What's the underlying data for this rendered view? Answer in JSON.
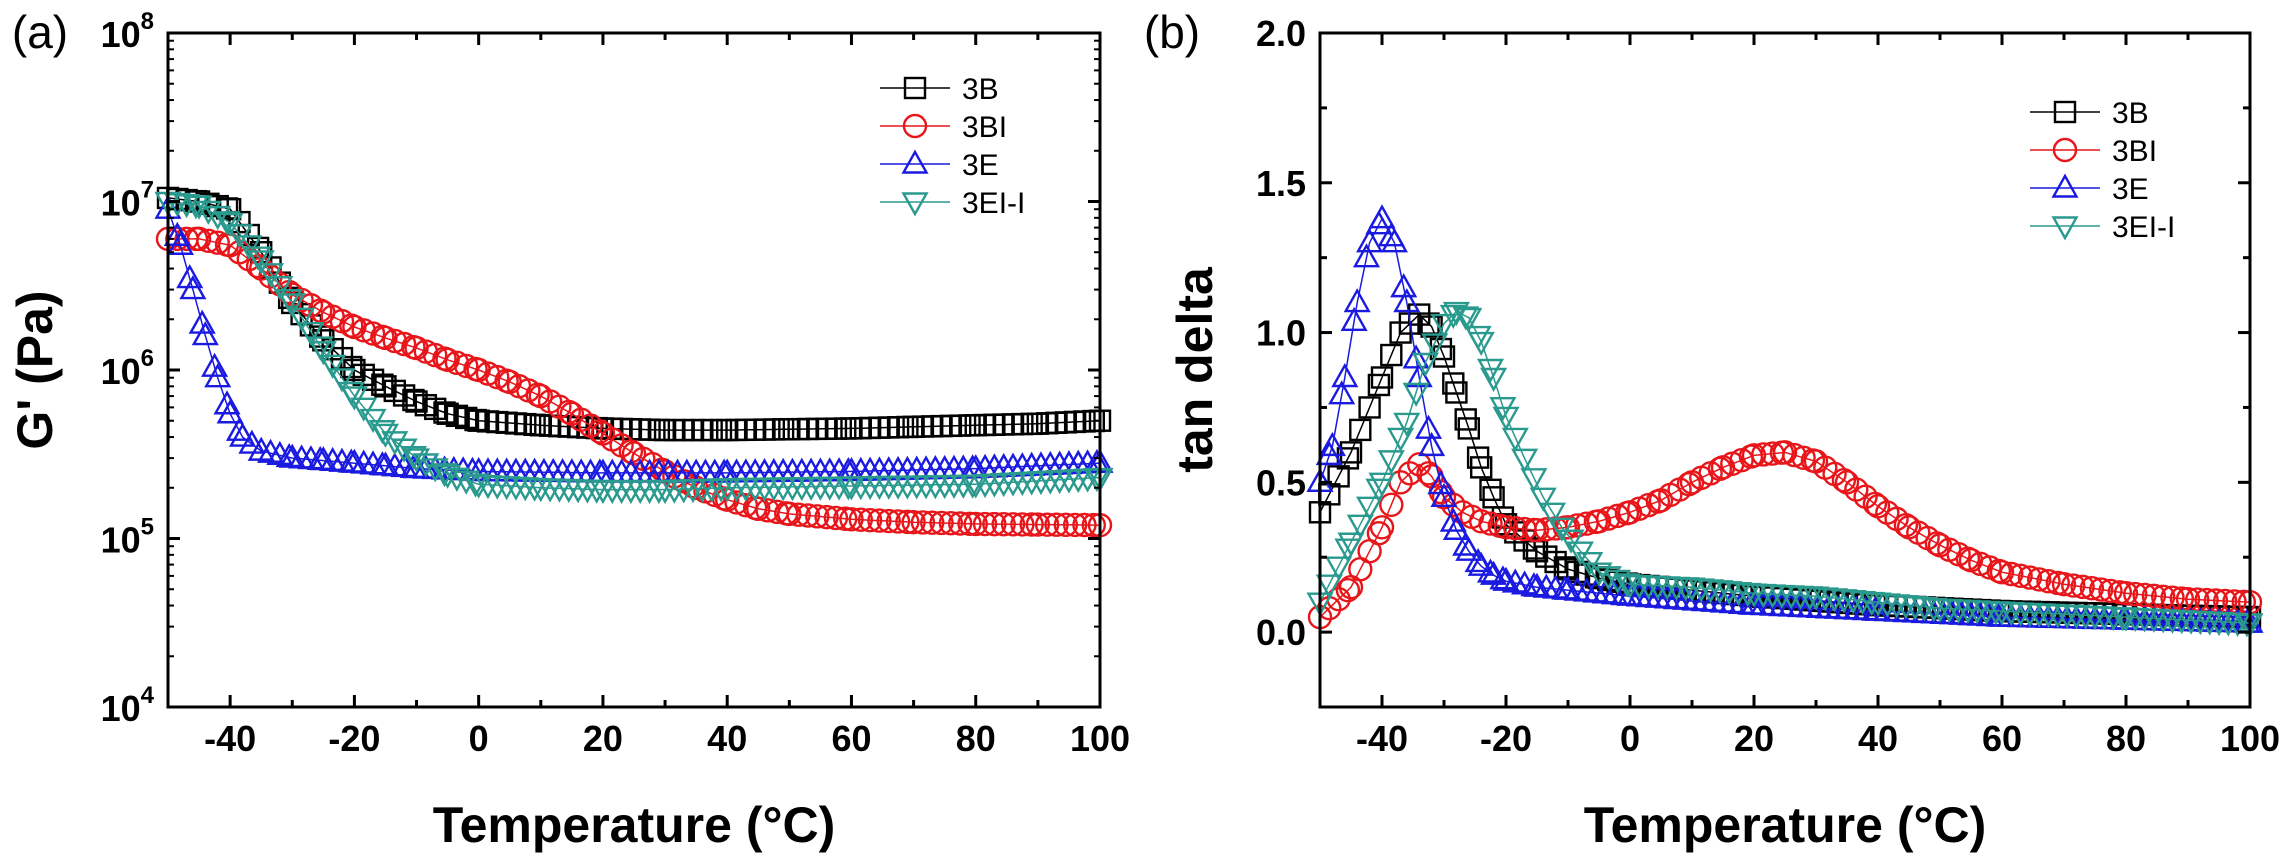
{
  "chart_data": [
    {
      "type": "scatter",
      "panel_label": "(a)",
      "xlabel": "Temperature (°C)",
      "ylabel": "G' (Pa)",
      "xlim": [
        -50,
        100
      ],
      "ylim": [
        10000,
        100000000
      ],
      "y_scale": "log",
      "xticks": [
        -40,
        -20,
        0,
        20,
        40,
        60,
        80,
        100
      ],
      "yticks": [
        {
          "base": "10",
          "exp": "4",
          "value": 10000
        },
        {
          "base": "10",
          "exp": "5",
          "value": 100000
        },
        {
          "base": "10",
          "exp": "6",
          "value": 1000000
        },
        {
          "base": "10",
          "exp": "7",
          "value": 10000000
        },
        {
          "base": "10",
          "exp": "8",
          "value": 100000000
        }
      ],
      "legend": "top-right",
      "grid": false,
      "series": [
        {
          "name": "3B",
          "marker": "square",
          "color": "#000000",
          "x": [
            -50,
            -45,
            -40,
            -35,
            -30,
            -25,
            -20,
            -15,
            -10,
            -5,
            0,
            10,
            20,
            30,
            40,
            50,
            60,
            70,
            80,
            90,
            100
          ],
          "y": [
            10500000,
            10000000,
            9000000,
            5000000,
            2500000,
            1500000,
            1000000,
            800000,
            650000,
            550000,
            500000,
            470000,
            450000,
            440000,
            440000,
            445000,
            450000,
            460000,
            470000,
            480000,
            500000
          ]
        },
        {
          "name": "3BI",
          "marker": "circle",
          "color": "#e8161a",
          "x": [
            -50,
            -45,
            -40,
            -35,
            -30,
            -25,
            -20,
            -15,
            -10,
            -5,
            0,
            5,
            10,
            15,
            20,
            25,
            30,
            35,
            40,
            45,
            50,
            60,
            70,
            80,
            90,
            100
          ],
          "y": [
            6000000,
            6000000,
            5500000,
            4000000,
            2800000,
            2200000,
            1800000,
            1550000,
            1350000,
            1150000,
            1000000,
            850000,
            700000,
            550000,
            420000,
            320000,
            250000,
            200000,
            170000,
            150000,
            140000,
            130000,
            125000,
            122000,
            121000,
            120000
          ]
        },
        {
          "name": "3E",
          "marker": "triangle-up",
          "color": "#1a1ae0",
          "x": [
            -50,
            -48,
            -46,
            -44,
            -42,
            -40,
            -38,
            -35,
            -30,
            -25,
            -20,
            -15,
            -10,
            0,
            20,
            40,
            60,
            80,
            100
          ],
          "y": [
            9000000,
            5500000,
            3000000,
            1600000,
            900000,
            550000,
            400000,
            330000,
            300000,
            290000,
            280000,
            270000,
            260000,
            250000,
            245000,
            245000,
            250000,
            260000,
            280000
          ]
        },
        {
          "name": "3EI-I",
          "marker": "triangle-down",
          "color": "#2a9a8e",
          "x": [
            -50,
            -45,
            -40,
            -35,
            -30,
            -25,
            -20,
            -15,
            -10,
            -5,
            0,
            10,
            20,
            30,
            40,
            60,
            80,
            100
          ],
          "y": [
            10000000,
            9500000,
            7500000,
            4500000,
            2500000,
            1300000,
            700000,
            420000,
            300000,
            240000,
            210000,
            200000,
            195000,
            195000,
            200000,
            205000,
            210000,
            230000
          ]
        }
      ]
    },
    {
      "type": "scatter",
      "panel_label": "(b)",
      "xlabel": "Temperature (°C)",
      "ylabel": "tan delta",
      "xlim": [
        -50,
        100
      ],
      "ylim": [
        -0.25,
        2.0
      ],
      "xticks": [
        -40,
        -20,
        0,
        20,
        40,
        60,
        80,
        100
      ],
      "yticks": [
        0.0,
        0.5,
        1.0,
        1.5,
        2.0
      ],
      "yticklabels": [
        "0.0",
        "0.5",
        "1.0",
        "1.5",
        "2.0"
      ],
      "legend": "top-right",
      "grid": false,
      "series": [
        {
          "name": "3B",
          "marker": "square",
          "color": "#000000",
          "x": [
            -50,
            -45,
            -40,
            -37,
            -34,
            -32,
            -30,
            -28,
            -26,
            -24,
            -22,
            -20,
            -15,
            -10,
            -5,
            0,
            20,
            40,
            60,
            80,
            100
          ],
          "y": [
            0.4,
            0.6,
            0.85,
            1.0,
            1.06,
            1.02,
            0.92,
            0.8,
            0.68,
            0.55,
            0.45,
            0.36,
            0.27,
            0.21,
            0.18,
            0.16,
            0.12,
            0.09,
            0.07,
            0.06,
            0.05
          ]
        },
        {
          "name": "3BI",
          "marker": "circle",
          "color": "#e8161a",
          "x": [
            -50,
            -45,
            -40,
            -37,
            -34,
            -32,
            -30,
            -27,
            -24,
            -20,
            -15,
            -10,
            -5,
            0,
            5,
            10,
            15,
            20,
            25,
            30,
            35,
            40,
            45,
            50,
            55,
            60,
            70,
            80,
            90,
            100
          ],
          "y": [
            0.05,
            0.15,
            0.35,
            0.5,
            0.56,
            0.52,
            0.45,
            0.4,
            0.37,
            0.35,
            0.34,
            0.35,
            0.37,
            0.4,
            0.44,
            0.5,
            0.55,
            0.59,
            0.6,
            0.57,
            0.5,
            0.42,
            0.35,
            0.29,
            0.24,
            0.2,
            0.16,
            0.13,
            0.11,
            0.1
          ]
        },
        {
          "name": "3E",
          "marker": "triangle-up",
          "color": "#1a1ae0",
          "x": [
            -50,
            -48,
            -46,
            -44,
            -42,
            -40,
            -38,
            -36,
            -34,
            -32,
            -30,
            -28,
            -26,
            -24,
            -22,
            -20,
            -15,
            -10,
            0,
            20,
            40,
            60,
            80,
            100
          ],
          "y": [
            0.5,
            0.62,
            0.85,
            1.1,
            1.3,
            1.38,
            1.3,
            1.1,
            0.85,
            0.62,
            0.45,
            0.34,
            0.27,
            0.22,
            0.19,
            0.17,
            0.15,
            0.14,
            0.12,
            0.09,
            0.07,
            0.05,
            0.04,
            0.03
          ]
        },
        {
          "name": "3EI-I",
          "marker": "triangle-down",
          "color": "#2a9a8e",
          "x": [
            -50,
            -45,
            -40,
            -36,
            -33,
            -30,
            -28,
            -26,
            -24,
            -22,
            -20,
            -17,
            -14,
            -11,
            -8,
            -5,
            0,
            10,
            20,
            30,
            40,
            50,
            60,
            80,
            100
          ],
          "y": [
            0.1,
            0.3,
            0.5,
            0.7,
            0.9,
            1.03,
            1.07,
            1.05,
            0.97,
            0.85,
            0.72,
            0.58,
            0.45,
            0.35,
            0.27,
            0.2,
            0.16,
            0.15,
            0.13,
            0.12,
            0.1,
            0.08,
            0.07,
            0.05,
            0.03
          ]
        }
      ]
    }
  ]
}
